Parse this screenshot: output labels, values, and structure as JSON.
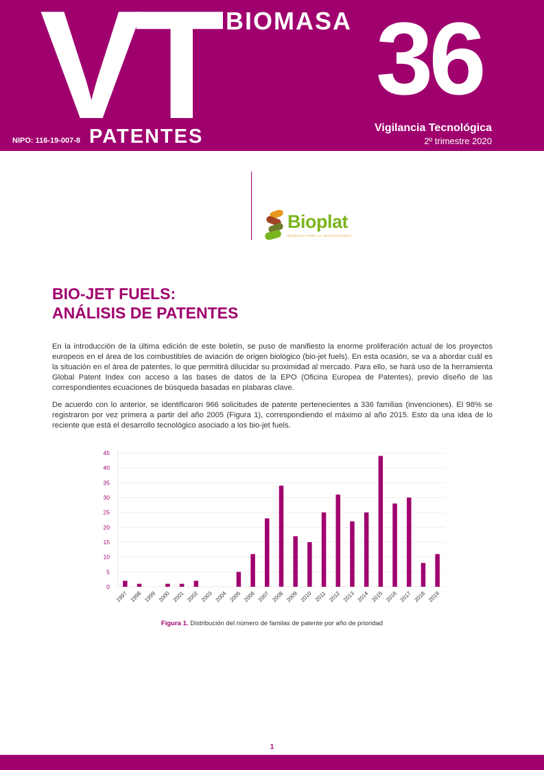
{
  "header": {
    "logo_letters": "VT",
    "section": "BIOMASA",
    "issue_number": "36",
    "nipo": "NIPO: 116-19-007-8",
    "subtitle": "PATENTES",
    "series": "Vigilancia Tecnológica",
    "period": "2º trimestre 2020"
  },
  "partner_logo": {
    "name": "Bioplat",
    "tagline": "BIOMASA PARA LA BIOECONOMÍA"
  },
  "article": {
    "title_line1": "BIO-JET FUELS:",
    "title_line2": "ANÁLISIS DE PATENTES",
    "paragraph1": "En la introducción de la última edición de este boletín, se puso de manifiesto la enorme proliferación actual de los proyectos europeos en el área de los combustibles de aviación de origen biológico (bio-jet fuels). En esta ocasión, se va a abordar cuál es la situación en el área de patentes, lo que permitirá dilucidar su proximidad al mercado. Para ello, se hará uso de la herramienta Global Patent Index con acceso a las bases de datos de la EPO (Oficina Europea de Patentes), previo diseño de las correspondientes ecuaciones de búsqueda basadas en plabaras clave.",
    "paragraph2": "De acuerdo con lo anterior, se identificaron 966 solicitudes de patente pertenecientes a 336 familias (invenciones). El 98% se registraron por vez primera a partir del año 2005 (Figura 1), correspondiendo el máximo al año 2015. Esto da una idea de lo reciente que está el desarrollo tecnológico asociado a los bio-jet fuels."
  },
  "chart_data": {
    "type": "bar",
    "categories": [
      "1997",
      "1998",
      "1999",
      "2000",
      "2001",
      "2002",
      "2003",
      "2004",
      "2005",
      "2006",
      "2007",
      "2008",
      "2009",
      "2010",
      "2011",
      "2012",
      "2013",
      "2014",
      "2015",
      "2016",
      "2017",
      "2018",
      "2019"
    ],
    "values": [
      2,
      1,
      0,
      1,
      1,
      2,
      0,
      0,
      5,
      11,
      23,
      34,
      17,
      15,
      25,
      31,
      22,
      25,
      44,
      28,
      30,
      8,
      11
    ],
    "yticks": [
      0,
      5,
      10,
      15,
      20,
      25,
      30,
      35,
      40,
      45
    ],
    "ylim": [
      0,
      45
    ],
    "color": "#a0006e",
    "title": "",
    "xlabel": "",
    "ylabel": ""
  },
  "figure": {
    "label": "Figura 1.",
    "caption": "Distribución del número de familas de patente por año de prioridad"
  },
  "page_number": "1"
}
